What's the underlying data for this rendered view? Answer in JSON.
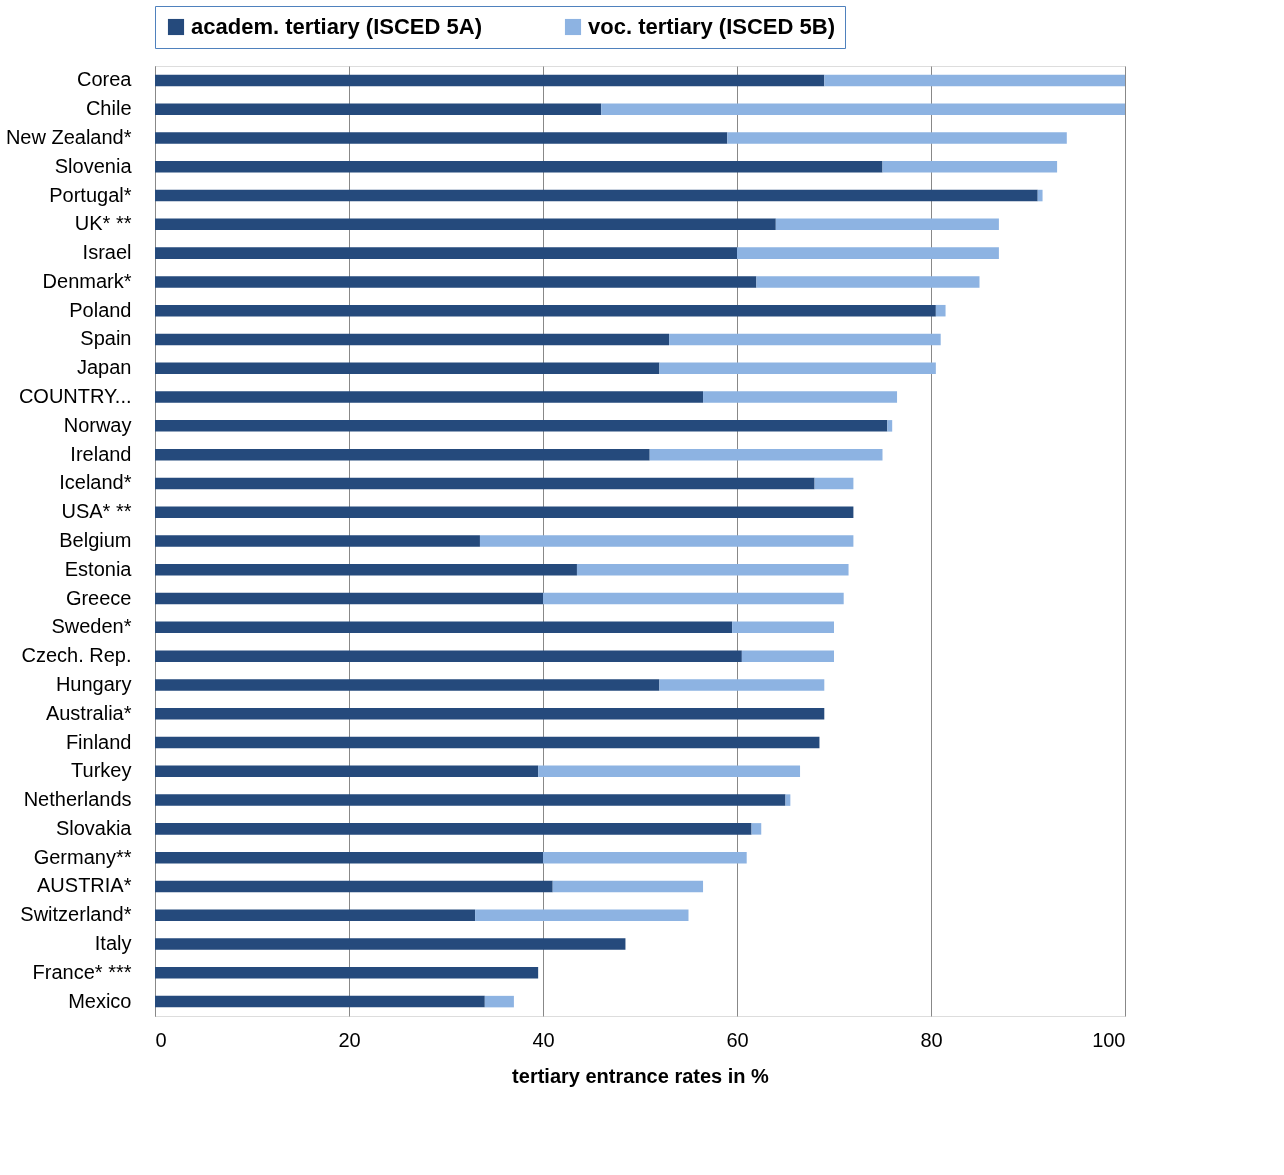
{
  "chart_data": {
    "type": "bar",
    "orientation": "horizontal",
    "stacked": true,
    "xlabel": "tertiary entrance rates in %",
    "categories": [
      "Corea",
      "Chile",
      "New Zealand*",
      "Slovenia",
      "Portugal*",
      "UK* **",
      "Israel",
      "Denmark*",
      "Poland",
      "Spain",
      "Japan",
      "COUNTRY...",
      "Norway",
      "Ireland",
      "Iceland*",
      "USA* **",
      "Belgium",
      "Estonia",
      "Greece",
      "Sweden*",
      "Czech. Rep.",
      "Hungary",
      "Australia*",
      "Finland",
      "Turkey",
      "Netherlands",
      "Slovakia",
      "Germany**",
      "AUSTRIA*",
      "Switzerland*",
      "Italy",
      "France* ***",
      "Mexico"
    ],
    "series": [
      {
        "name": "academ. tertiary (ISCED 5A)",
        "color": "#254a7c",
        "values": [
          69,
          46,
          59,
          75,
          91,
          64,
          60,
          62,
          80.5,
          53,
          52,
          56.5,
          75.5,
          51,
          68,
          72,
          33.5,
          43.5,
          40,
          59.5,
          60.5,
          52,
          69,
          68.5,
          39.5,
          65,
          61.5,
          40,
          41,
          33,
          48.5,
          39.5,
          34
        ]
      },
      {
        "name": "voc. tertiary (ISCED 5B)",
        "color": "#8db3e2",
        "values": [
          31,
          54,
          35,
          18,
          0.5,
          23,
          27,
          23,
          1,
          28,
          28.5,
          20,
          0.5,
          24,
          4,
          0,
          38.5,
          28,
          31,
          10.5,
          9.5,
          17,
          0,
          0,
          27,
          0.5,
          1,
          21,
          15.5,
          22,
          0,
          0,
          3
        ]
      }
    ],
    "xlim": [
      0,
      100
    ],
    "xticks": [
      0,
      20,
      40,
      60,
      80,
      100
    ],
    "grid": "x",
    "legend": "top"
  }
}
